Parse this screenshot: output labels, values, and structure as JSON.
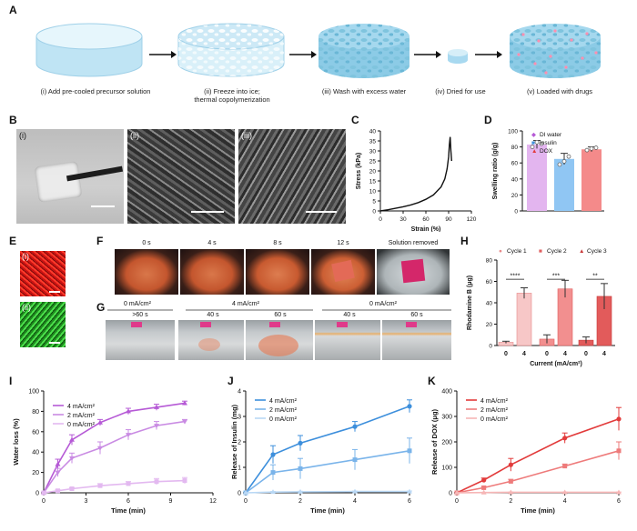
{
  "panelA": {
    "label": "A",
    "steps": [
      {
        "caption": "(i) Add pre-cooled precursor solution"
      },
      {
        "caption": "(ii) Freeze into ice;\nthermal copolymerization"
      },
      {
        "caption": "(iii) Wash with excess water"
      },
      {
        "caption": "(iv) Dried for use"
      },
      {
        "caption": "(v) Loaded with drugs"
      }
    ]
  },
  "panelB": {
    "label": "B",
    "subs": [
      "(i)",
      "(ii)",
      "(iii)"
    ]
  },
  "panelC": {
    "label": "C"
  },
  "panelD": {
    "label": "D"
  },
  "panelE": {
    "label": "E",
    "subs": [
      "(i)",
      "(ii)"
    ]
  },
  "panelF": {
    "label": "F",
    "times": [
      "0 s",
      "4 s",
      "8 s",
      "12 s",
      "Solution removed"
    ]
  },
  "panelG": {
    "label": "G",
    "groups": [
      "0 mA/cm²",
      "4 mA/cm²",
      "0 mA/cm²"
    ],
    "times": [
      ">60 s",
      "40 s",
      "60 s",
      "40 s",
      "60 s"
    ]
  },
  "panelH": {
    "label": "H"
  },
  "panelI": {
    "label": "I"
  },
  "panelJ": {
    "label": "J"
  },
  "panelK": {
    "label": "K"
  },
  "colors": {
    "purple": "#b65ad6",
    "blue": "#3d8fdc",
    "red": "#e23b3b",
    "mint": "#bfe8ea"
  },
  "chart_data": [
    {
      "id": "C",
      "type": "line",
      "xlabel": "Strain (%)",
      "ylabel": "Stress (kPa)",
      "xlim": [
        0,
        120
      ],
      "ylim": [
        0,
        40
      ],
      "xticks": [
        0,
        30,
        60,
        90,
        120
      ],
      "yticks": [
        0,
        5,
        10,
        15,
        20,
        25,
        30,
        35,
        40
      ],
      "series": [
        {
          "x": [
            0,
            10,
            20,
            30,
            40,
            50,
            60,
            70,
            80,
            85,
            88,
            90,
            91,
            92,
            93,
            94
          ],
          "y": [
            0,
            0.6,
            1.3,
            2.1,
            3.0,
            4.2,
            5.8,
            8.0,
            12.0,
            16.0,
            21.0,
            27.0,
            33.0,
            37.0,
            30.0,
            25.0
          ]
        }
      ]
    },
    {
      "id": "D",
      "type": "bar",
      "ylabel": "Swelling ratio (g/g)",
      "ylim": [
        0,
        100
      ],
      "yticks": [
        0,
        20,
        40,
        60,
        80,
        100
      ],
      "categories": [
        "DI water",
        "Insulin",
        "DOX"
      ],
      "values": [
        83,
        65,
        77
      ],
      "errors": [
        5,
        7,
        3
      ],
      "points": [
        [
          80,
          86,
          84
        ],
        [
          58,
          62,
          68
        ],
        [
          76,
          78,
          79
        ]
      ],
      "legend": [
        "DI water",
        "Insulin",
        "DOX"
      ],
      "colors": [
        "#e3b5ef",
        "#90c6f3",
        "#f48a8a"
      ]
    },
    {
      "id": "H",
      "type": "bar",
      "xlabel": "Current (mA/cm²)",
      "ylabel": "Rhodamine B (μg)",
      "ylim": [
        0,
        80
      ],
      "yticks": [
        0,
        20,
        40,
        60,
        80
      ],
      "legend": [
        "Cycle 1",
        "Cycle 2",
        "Cycle 3"
      ],
      "categories": [
        "0",
        "4",
        "0",
        "4",
        "0",
        "4"
      ],
      "values": [
        3,
        49,
        6,
        53,
        5,
        46
      ],
      "errors": [
        1,
        5,
        4,
        8,
        3,
        12
      ],
      "significance": [
        "****",
        "***",
        "**"
      ],
      "colors": [
        "#f7c7c7",
        "#f28f8f",
        "#e25b5b"
      ]
    },
    {
      "id": "I",
      "type": "line",
      "xlabel": "Time (min)",
      "ylabel": "Water loss (%)",
      "xlim": [
        0,
        12
      ],
      "ylim": [
        0,
        100
      ],
      "xticks": [
        0,
        3,
        6,
        9,
        12
      ],
      "yticks": [
        0,
        20,
        40,
        60,
        80,
        100
      ],
      "x": [
        0,
        1,
        2,
        4,
        6,
        8,
        10
      ],
      "series": [
        {
          "name": "4 mA/cm²",
          "values": [
            0,
            28,
            52,
            69,
            80,
            84,
            88
          ],
          "errors": [
            0,
            5,
            5,
            3,
            3,
            3,
            2
          ]
        },
        {
          "name": "2 mA/cm²",
          "values": [
            0,
            20,
            34,
            44,
            57,
            66,
            70
          ],
          "errors": [
            0,
            4,
            5,
            6,
            5,
            4,
            2
          ]
        },
        {
          "name": "0 mA/cm²",
          "values": [
            0,
            2,
            4,
            7,
            9,
            11,
            12
          ],
          "errors": [
            0,
            1,
            1,
            2,
            2,
            3,
            3
          ]
        }
      ]
    },
    {
      "id": "J",
      "type": "line",
      "xlabel": "Time (min)",
      "ylabel": "Release of Insulin (mg)",
      "xlim": [
        0,
        6
      ],
      "ylim": [
        0,
        4
      ],
      "xticks": [
        0,
        2,
        4,
        6
      ],
      "yticks": [
        0,
        1,
        2,
        3,
        4
      ],
      "x": [
        0,
        1,
        2,
        4,
        6
      ],
      "series": [
        {
          "name": "4 mA/cm²",
          "values": [
            0,
            1.5,
            1.95,
            2.6,
            3.4
          ],
          "errors": [
            0,
            0.35,
            0.3,
            0.2,
            0.25
          ]
        },
        {
          "name": "2 mA/cm²",
          "values": [
            0,
            0.8,
            0.95,
            1.3,
            1.65
          ],
          "errors": [
            0,
            0.3,
            0.4,
            0.4,
            0.5
          ]
        },
        {
          "name": "0 mA/cm²",
          "values": [
            0,
            0.03,
            0.04,
            0.05,
            0.05
          ],
          "errors": [
            0,
            0.02,
            0.02,
            0.02,
            0.02
          ]
        }
      ]
    },
    {
      "id": "K",
      "type": "line",
      "xlabel": "Time (min)",
      "ylabel": "Release of DOX (μg)",
      "xlim": [
        0,
        6
      ],
      "ylim": [
        0,
        400
      ],
      "xticks": [
        0,
        2,
        4,
        6
      ],
      "yticks": [
        0,
        100,
        200,
        300,
        400
      ],
      "x": [
        0,
        1,
        2,
        4,
        6
      ],
      "series": [
        {
          "name": "4 mA/cm²",
          "values": [
            0,
            50,
            110,
            215,
            290
          ],
          "errors": [
            0,
            8,
            25,
            20,
            45
          ]
        },
        {
          "name": "2 mA/cm²",
          "values": [
            0,
            20,
            45,
            105,
            165
          ],
          "errors": [
            0,
            5,
            8,
            8,
            35
          ]
        },
        {
          "name": "0 mA/cm²",
          "values": [
            0,
            1,
            2,
            2,
            2
          ],
          "errors": [
            0,
            1,
            1,
            1,
            1
          ]
        }
      ]
    }
  ]
}
